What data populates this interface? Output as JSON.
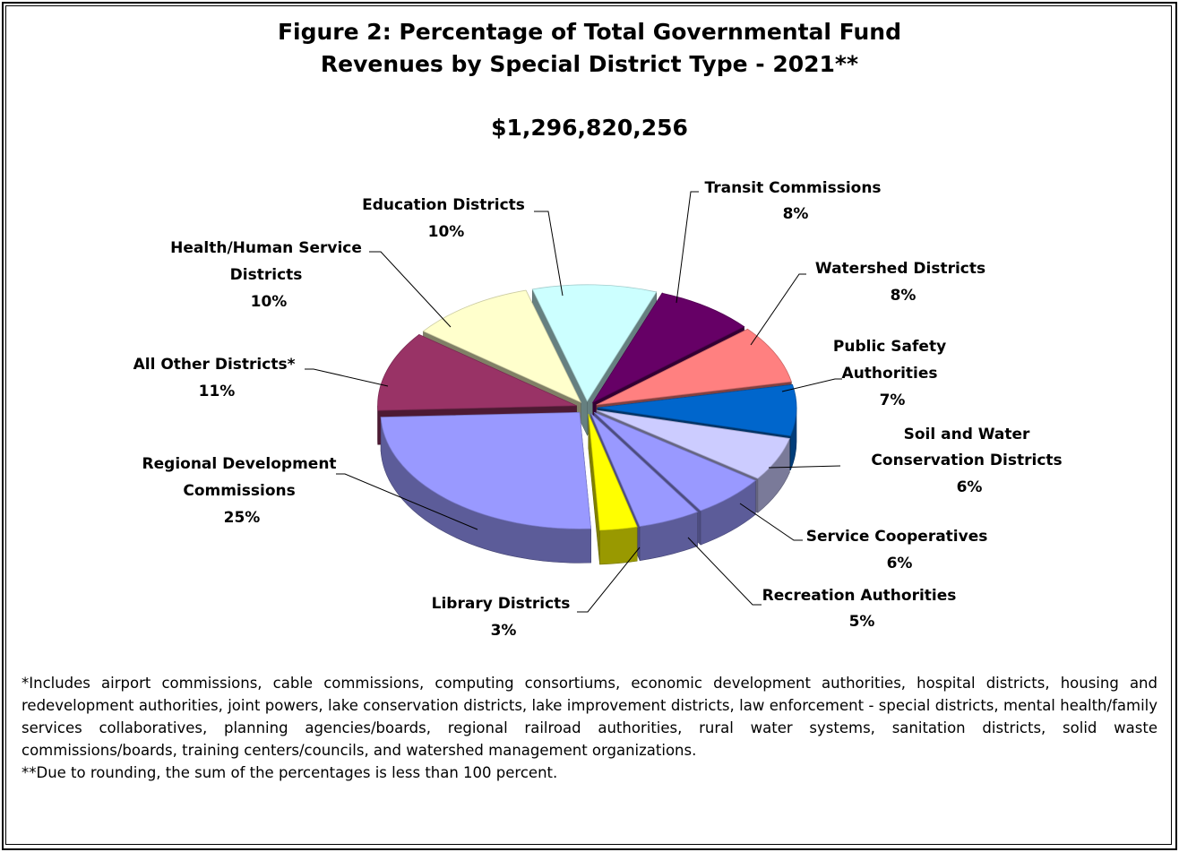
{
  "chart_data": {
    "type": "pie",
    "title_line1": "Figure 2:  Percentage of Total Governmental Fund",
    "title_line2": "Revenues by Special District Type - 2021**",
    "subtitle": "$1,296,820,256",
    "slices": [
      {
        "label": "Education Districts",
        "value": 10,
        "pct_text": "10%",
        "color": "#CCFFFF"
      },
      {
        "label": "Transit Commissions",
        "value": 8,
        "pct_text": "8%",
        "color": "#660066"
      },
      {
        "label": "Watershed Districts",
        "value": 8,
        "pct_text": "8%",
        "color": "#FF8080"
      },
      {
        "label": "Public Safety Authorities",
        "value": 7,
        "pct_text": "7%",
        "color": "#0066CC"
      },
      {
        "label": "Soil and Water Conservation Districts",
        "value": 6,
        "pct_text": "6%",
        "color": "#CCCCFF"
      },
      {
        "label": "Service Cooperatives",
        "value": 6,
        "pct_text": "6%",
        "color": "#9999FF"
      },
      {
        "label": "Recreation Authorities",
        "value": 5,
        "pct_text": "5%",
        "color": "#9999FF"
      },
      {
        "label": "Library Districts",
        "value": 3,
        "pct_text": "3%",
        "color": "#FFFF00"
      },
      {
        "label": "Regional Development Commissions",
        "value": 25,
        "pct_text": "25%",
        "color": "#9999FF"
      },
      {
        "label": "All Other Districts*",
        "value": 11,
        "pct_text": "11%",
        "color": "#993366"
      },
      {
        "label": "Health/Human Service Districts",
        "value": 10,
        "pct_text": "10%",
        "color": "#FFFFCC"
      }
    ]
  },
  "labels": {
    "education": [
      "Education Districts",
      "10%"
    ],
    "transit": [
      "Transit Commissions",
      "8%"
    ],
    "watershed": [
      "Watershed Districts",
      "8%"
    ],
    "public_safety": [
      "Public Safety",
      "Authorities",
      "7%"
    ],
    "soil_water": [
      "Soil and Water",
      "Conservation Districts",
      "6%"
    ],
    "service_coop": [
      "Service Cooperatives",
      "6%"
    ],
    "recreation": [
      "Recreation Authorities",
      "5%"
    ],
    "library": [
      "Library Districts",
      "3%"
    ],
    "regional": [
      "Regional Development",
      "Commissions",
      "25%"
    ],
    "all_other": [
      "All Other Districts*",
      "11%"
    ],
    "health": [
      "Health/Human Service",
      "Districts",
      "10%"
    ]
  },
  "footnotes": {
    "note1": "*Includes airport commissions, cable commissions, computing consortiums, economic development authorities, hospital districts, housing and redevelopment authorities, joint powers, lake conservation districts, lake improvement districts, law enforcement - special districts, mental health/family services collaboratives, planning agencies/boards, regional railroad authorities, rural water systems, sanitation districts, solid waste commissions/boards, training centers/councils, and watershed management organizations.",
    "note2": "**Due to rounding, the sum of the percentages is less than 100 percent."
  }
}
